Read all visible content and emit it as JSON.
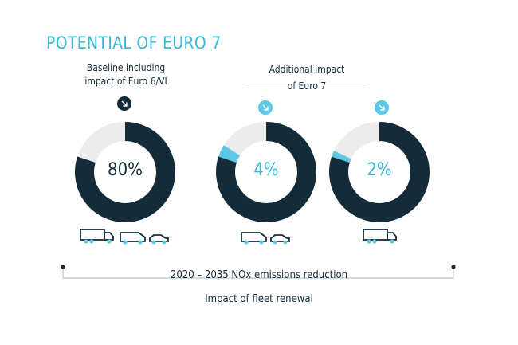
{
  "title": "POTENTIAL OF EURO 7",
  "labels": {
    "baseline_line1": "Baseline including",
    "baseline_line2": "impact of Euro 6/VI",
    "additional_line1": "Additional impact",
    "additional_line2": "of Euro 7"
  },
  "axis": {
    "primary": "2020 – 2035 NOx emissions reduction",
    "secondary": "Impact of fleet renewal"
  },
  "colors": {
    "navy": "#142b3a",
    "cyan": "#5cc8e6",
    "track": "#ececec",
    "title": "#3bb7d6"
  },
  "chart_data": {
    "type": "pie",
    "charts": [
      {
        "value_label": "80%",
        "baseline_pct": 80,
        "additional_pct": 0,
        "vehicles": [
          "truck",
          "van",
          "car"
        ],
        "icon": "arrow-down-right-icon"
      },
      {
        "value_label": "4%",
        "baseline_pct": 80,
        "additional_pct": 4,
        "vehicles": [
          "van",
          "car"
        ],
        "icon": "arrow-down-right-icon"
      },
      {
        "value_label": "2%",
        "baseline_pct": 80,
        "additional_pct": 2,
        "vehicles": [
          "truck"
        ],
        "icon": "arrow-down-right-icon"
      }
    ]
  }
}
